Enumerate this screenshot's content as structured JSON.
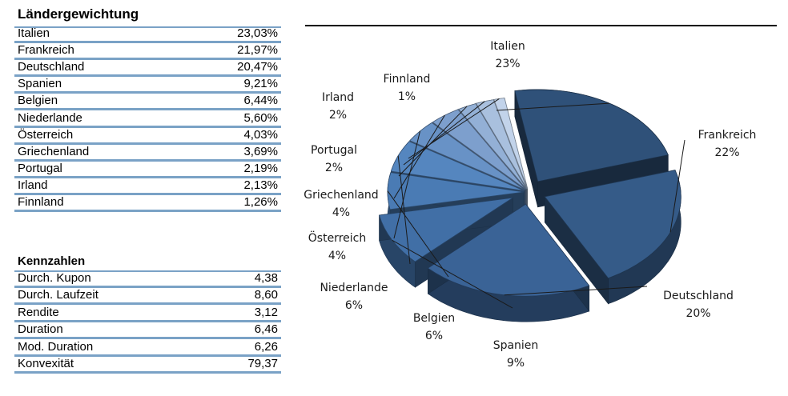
{
  "laender": {
    "title": "Ländergewichtung",
    "rows": [
      {
        "label": "Italien",
        "value": "23,03%"
      },
      {
        "label": "Frankreich",
        "value": "21,97%"
      },
      {
        "label": "Deutschland",
        "value": "20,47%"
      },
      {
        "label": "Spanien",
        "value": "9,21%"
      },
      {
        "label": "Belgien",
        "value": "6,44%"
      },
      {
        "label": "Niederlande",
        "value": "5,60%"
      },
      {
        "label": "Österreich",
        "value": "4,03%"
      },
      {
        "label": "Griechenland",
        "value": "3,69%"
      },
      {
        "label": "Portugal",
        "value": "2,19%"
      },
      {
        "label": "Irland",
        "value": "2,13%"
      },
      {
        "label": "Finnland",
        "value": "1,26%"
      }
    ]
  },
  "kennzahlen": {
    "title": "Kennzahlen",
    "rows": [
      {
        "label": "Durch. Kupon",
        "value": "4,38"
      },
      {
        "label": "Durch. Laufzeit",
        "value": "8,60"
      },
      {
        "label": "Rendite",
        "value": "3,12"
      },
      {
        "label": "Duration",
        "value": "6,46"
      },
      {
        "label": "Mod. Duration",
        "value": "6,26"
      },
      {
        "label": "Konvexität",
        "value": "79,37"
      }
    ]
  },
  "chart_data": {
    "type": "pie",
    "title": "",
    "style": "3d-exploded",
    "slices": [
      {
        "name": "Italien",
        "value": 23.03,
        "label": "23%",
        "color": "#2f5179"
      },
      {
        "name": "Frankreich",
        "value": 21.97,
        "label": "22%",
        "color": "#355b88"
      },
      {
        "name": "Deutschland",
        "value": 20.47,
        "label": "20%",
        "color": "#3a6396"
      },
      {
        "name": "Spanien",
        "value": 9.21,
        "label": "9%",
        "color": "#416fa6"
      },
      {
        "name": "Belgien",
        "value": 6.44,
        "label": "6%",
        "color": "#4a7bb4"
      },
      {
        "name": "Niederlande",
        "value": 5.6,
        "label": "6%",
        "color": "#5586bf"
      },
      {
        "name": "Österreich",
        "value": 4.03,
        "label": "4%",
        "color": "#6892c6"
      },
      {
        "name": "Griechenland",
        "value": 3.69,
        "label": "4%",
        "color": "#7d9fcd"
      },
      {
        "name": "Portugal",
        "value": 2.19,
        "label": "2%",
        "color": "#93b0d6"
      },
      {
        "name": "Irland",
        "value": 2.13,
        "label": "2%",
        "color": "#a9c0de"
      },
      {
        "name": "Finnland",
        "value": 1.26,
        "label": "1%",
        "color": "#c2d3ea"
      }
    ]
  }
}
